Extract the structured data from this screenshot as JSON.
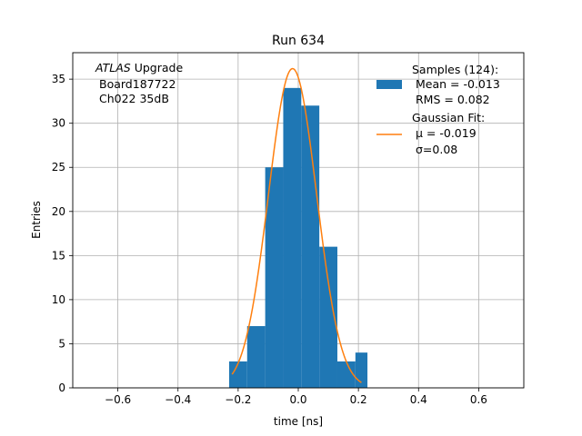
{
  "chart_data": {
    "type": "bar",
    "title": "Run 634",
    "xlabel": "time [ns]",
    "ylabel": "Entries",
    "xlim": [
      -0.75,
      0.75
    ],
    "ylim": [
      0,
      38
    ],
    "grid": true,
    "x_ticks": [
      -0.6,
      -0.4,
      -0.2,
      0.0,
      0.2,
      0.4,
      0.6
    ],
    "x_tick_labels": [
      "−0.6",
      "−0.4",
      "−0.2",
      "0.0",
      "0.2",
      "0.4",
      "0.6"
    ],
    "y_ticks": [
      0,
      5,
      10,
      15,
      20,
      25,
      30,
      35
    ],
    "y_tick_labels": [
      "0",
      "5",
      "10",
      "15",
      "20",
      "25",
      "30",
      "35"
    ],
    "bin_edges": [
      -0.23,
      -0.17,
      -0.11,
      -0.05,
      0.01,
      0.07,
      0.13,
      0.19,
      0.23
    ],
    "values": [
      3,
      7,
      25,
      34,
      32,
      16,
      3,
      4
    ],
    "series": [
      {
        "name": "Samples (124):",
        "kind": "histogram",
        "color": "#1f77b4"
      },
      {
        "name": "Gaussian Fit:",
        "kind": "line",
        "color": "#ff7f0e",
        "amplitude": 36.2,
        "mu": -0.019,
        "sigma": 0.08,
        "x_range": [
          -0.22,
          0.21
        ]
      }
    ],
    "legend_placement": "top-right",
    "legend": {
      "samples_title": "Samples (124):",
      "samples_mean": "Mean = -0.013",
      "samples_rms": "RMS = 0.082",
      "fit_title": "Gaussian Fit:",
      "fit_mu": "μ = -0.019",
      "fit_sigma": "σ=0.08"
    },
    "annotation": {
      "italic": "ATLAS",
      "rest": " Upgrade",
      "line2": "Board187722",
      "line3": "Ch022 35dB"
    }
  }
}
